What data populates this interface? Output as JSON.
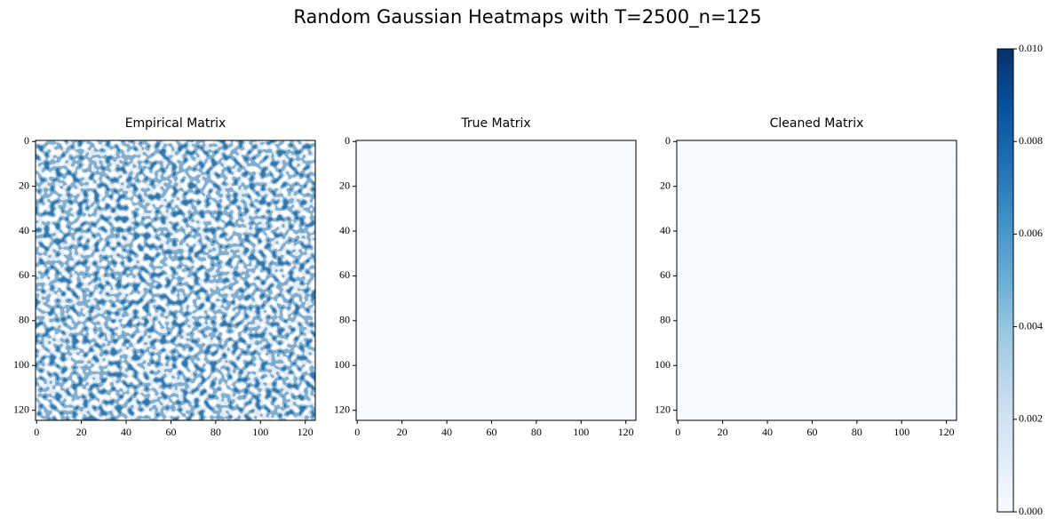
{
  "figure": {
    "title": "Random Gaussian Heatmaps with T=2500_n=125"
  },
  "chart_data": [
    {
      "type": "heatmap",
      "title": "Empirical Matrix",
      "xlim": [
        -0.5,
        124.5
      ],
      "ylim": [
        124.5,
        -0.5
      ],
      "xticks": [
        0,
        20,
        40,
        60,
        80,
        100,
        120
      ],
      "yticks": [
        0,
        20,
        40,
        60,
        80,
        100,
        120
      ],
      "texture": "noise"
    },
    {
      "type": "heatmap",
      "title": "True Matrix",
      "xlim": [
        -0.5,
        124.5
      ],
      "ylim": [
        124.5,
        -0.5
      ],
      "xticks": [
        0,
        20,
        40,
        60,
        80,
        100,
        120
      ],
      "yticks": [
        0,
        20,
        40,
        60,
        80,
        100,
        120
      ],
      "texture": "flat"
    },
    {
      "type": "heatmap",
      "title": "Cleaned Matrix",
      "xlim": [
        -0.5,
        124.5
      ],
      "ylim": [
        124.5,
        -0.5
      ],
      "xticks": [
        0,
        20,
        40,
        60,
        80,
        100,
        120
      ],
      "yticks": [
        0,
        20,
        40,
        60,
        80,
        100,
        120
      ],
      "texture": "faint"
    }
  ],
  "colorbar": {
    "ylim": [
      0,
      0.01
    ],
    "yticks": [
      {
        "value": 0,
        "label": "0.000"
      },
      {
        "value": 0.002,
        "label": "0.002"
      },
      {
        "value": 0.004,
        "label": "0.004"
      },
      {
        "value": 0.006,
        "label": "0.006"
      },
      {
        "value": 0.008,
        "label": "0.008"
      },
      {
        "value": 0.01,
        "label": "0.010"
      }
    ],
    "colors": [
      "#f7fbff",
      "#deebf7",
      "#c6dbef",
      "#9ecae1",
      "#6baed6",
      "#4292c6",
      "#2171b5",
      "#08519c",
      "#08306b"
    ]
  }
}
